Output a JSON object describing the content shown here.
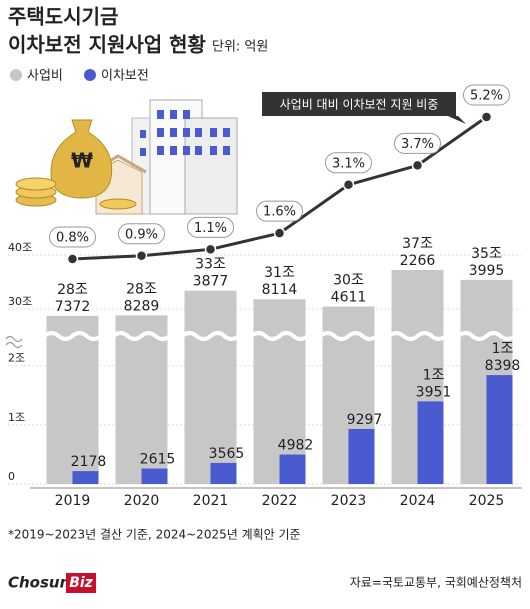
{
  "header": {
    "title": [
      "주택도시기금",
      "이차보전 지원사업 현황"
    ],
    "unit": "단위: 억원"
  },
  "chart_data": {
    "type": "bar",
    "categories": [
      "2019",
      "2020",
      "2021",
      "2022",
      "2023",
      "2024",
      "2025"
    ],
    "series": [
      {
        "name": "사업비",
        "color": "#c7c7c7",
        "values": [
          287372,
          288289,
          333877,
          318114,
          304611,
          372266,
          353995
        ],
        "value_labels": [
          [
            "28조",
            "7372"
          ],
          [
            "28조",
            "8289"
          ],
          [
            "33조",
            "3877"
          ],
          [
            "31조",
            "8114"
          ],
          [
            "30조",
            "4611"
          ],
          [
            "37조",
            "2266"
          ],
          [
            "35조",
            "3995"
          ]
        ]
      },
      {
        "name": "이차보전",
        "color": "#4a5bd0",
        "values": [
          2178,
          2615,
          3565,
          4982,
          9297,
          13951,
          18398
        ],
        "value_labels": [
          [
            "2178"
          ],
          [
            "2615"
          ],
          [
            "3565"
          ],
          [
            "4982"
          ],
          [
            "9297"
          ],
          [
            "1조",
            "3951"
          ],
          [
            "1조",
            "8398"
          ]
        ]
      },
      {
        "name": "사업비 대비 이차보전 지원 비중",
        "type": "line",
        "color": "#333333",
        "values": [
          0.8,
          0.9,
          1.1,
          1.6,
          3.1,
          3.7,
          5.2
        ],
        "value_labels": [
          "0.8%",
          "0.9%",
          "1.1%",
          "1.6%",
          "3.1%",
          "3.7%",
          "5.2%"
        ]
      }
    ],
    "ylim": [
      0,
      400000
    ],
    "ybreak": [
      25000,
      250000
    ],
    "yticks": [
      0,
      {
        "value": 10000,
        "label": "1조"
      },
      {
        "value": 20000,
        "label": "2조"
      },
      {
        "value": 300000,
        "label": "30조"
      },
      {
        "value": 400000,
        "label": "40조"
      }
    ],
    "grid": true
  },
  "footer": {
    "note": "*2019~2023년 결산 기준, 2024~2025년 계획안 기준",
    "source": "자료=국토교통부, 국회예산정책처",
    "logo": [
      "Chosun",
      "Biz"
    ]
  }
}
